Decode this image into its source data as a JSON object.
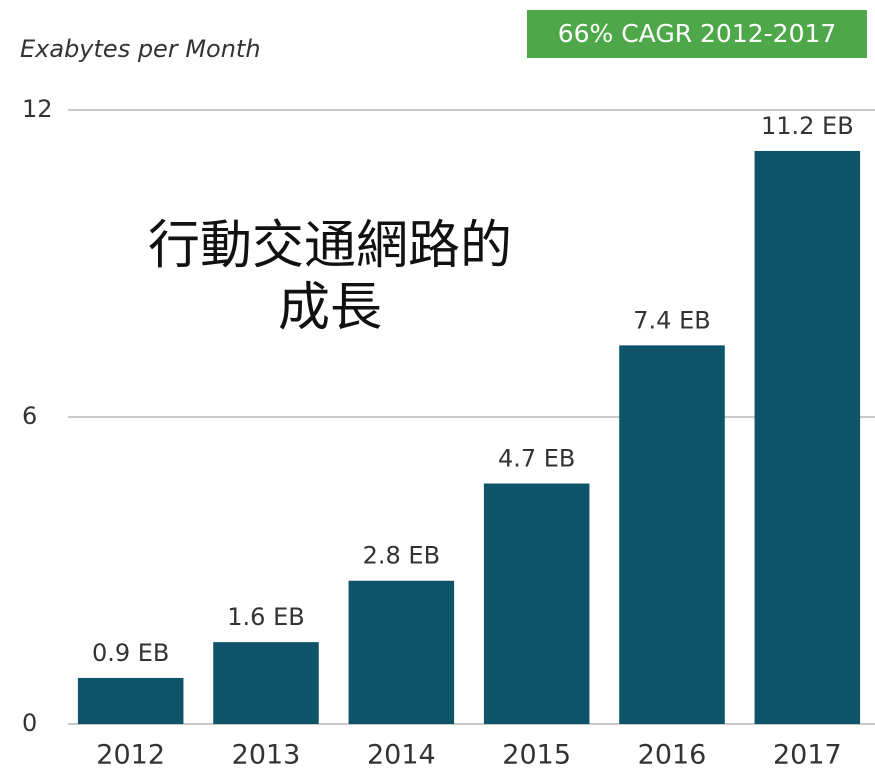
{
  "chart_data": {
    "type": "bar",
    "title": "行動交通網路的成長",
    "y_axis_label": "Exabytes per Month",
    "annotation": "66% CAGR 2012-2017",
    "categories": [
      "2012",
      "2013",
      "2014",
      "2015",
      "2016",
      "2017"
    ],
    "values": [
      0.9,
      1.6,
      2.8,
      4.7,
      7.4,
      11.2
    ],
    "value_labels": [
      "0.9 EB",
      "1.6 EB",
      "2.8 EB",
      "4.7 EB",
      "7.4 EB",
      "11.2 EB"
    ],
    "color": "#0d5468",
    "ylim": [
      0,
      12
    ],
    "yticks": [
      0,
      6,
      12
    ],
    "grid": true
  }
}
